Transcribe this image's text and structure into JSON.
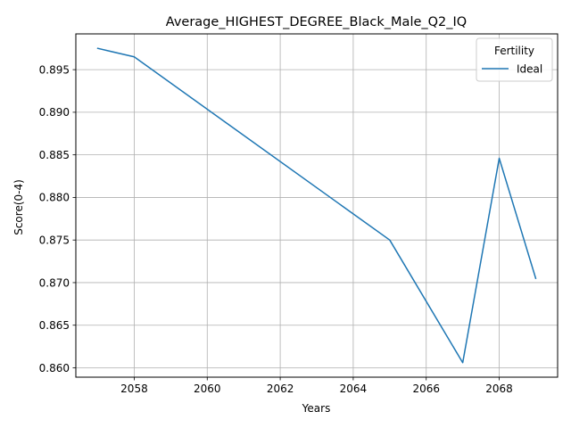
{
  "chart_data": {
    "type": "line",
    "title": "Average_HIGHEST_DEGREE_Black_Male_Q2_IQ",
    "xlabel": "Years",
    "ylabel": "Score(0-4)",
    "xlim": [
      2056.4,
      2069.6
    ],
    "ylim": [
      0.8589,
      0.8992
    ],
    "x_ticks": [
      2058,
      2060,
      2062,
      2064,
      2066,
      2068
    ],
    "y_ticks": [
      0.86,
      0.865,
      0.87,
      0.875,
      0.88,
      0.885,
      0.89,
      0.895
    ],
    "grid": true,
    "legend": {
      "title": "Fertility",
      "placement": "top-right"
    },
    "series": [
      {
        "name": "Ideal",
        "color": "#1f77b4",
        "x": [
          2057,
          2058,
          2065,
          2067,
          2068,
          2069
        ],
        "y": [
          0.8975,
          0.8965,
          0.875,
          0.8606,
          0.8846,
          0.8705
        ]
      }
    ]
  }
}
